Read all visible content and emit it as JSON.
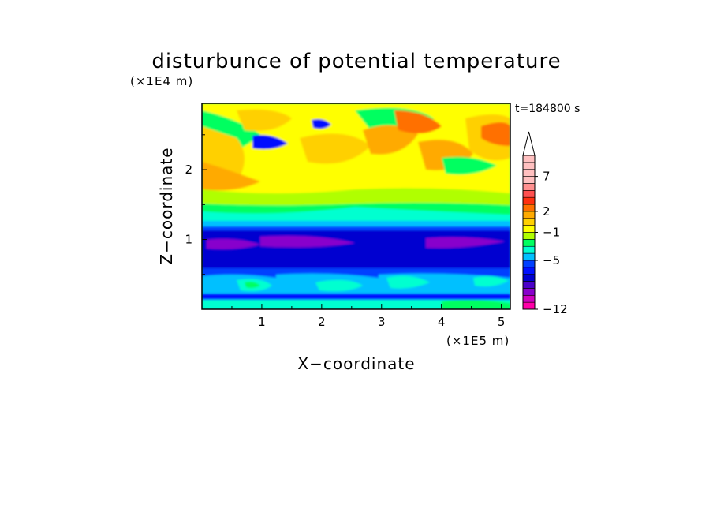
{
  "chart_data": {
    "type": "heatmap",
    "title": "disturbunce of potential temperature",
    "time_label": "t=184800 s",
    "xlabel": "X−coordinate",
    "ylabel": "Z−coordinate",
    "x_unit": "(×1E5 m)",
    "y_unit": "(×1E4 m)",
    "xlim": [
      0,
      5.15
    ],
    "ylim": [
      0,
      2.95
    ],
    "x_ticks": [
      "1",
      "2",
      "3",
      "4",
      "5"
    ],
    "y_ticks": [
      "1",
      "2"
    ],
    "colorbar": {
      "levels": [
        -12,
        -11,
        -10,
        -9,
        -8,
        -7,
        -6,
        -5,
        -4,
        -3,
        -2,
        -1,
        0,
        1,
        2,
        3,
        4,
        5,
        6,
        7,
        8,
        9,
        10
      ],
      "tick_labels": [
        "−12",
        "−5",
        "−1",
        "2",
        "7"
      ],
      "tick_values": [
        -12,
        -5,
        -1,
        2,
        7
      ],
      "colors": [
        "#ff00a8",
        "#d000c0",
        "#8800cc",
        "#4b00c8",
        "#0000d0",
        "#0010ff",
        "#0040ff",
        "#00c0ff",
        "#00ffd0",
        "#00ff60",
        "#b0ff00",
        "#ffff00",
        "#ffd000",
        "#ffaa00",
        "#ff7000",
        "#ff3010",
        "#ff5050",
        "#ff9090",
        "#ffc0c0"
      ],
      "extend": "max"
    },
    "description_rows": [
      {
        "z": 0.1,
        "level": -4
      },
      {
        "z": 0.45,
        "level": -3
      },
      {
        "z": 0.8,
        "level": -7
      },
      {
        "z": 1.15,
        "level": -6
      },
      {
        "z": 1.35,
        "level": -2
      },
      {
        "z": 1.6,
        "level": 1
      },
      {
        "z": 2.1,
        "level": 3
      },
      {
        "z": 2.6,
        "level": 2
      }
    ]
  }
}
